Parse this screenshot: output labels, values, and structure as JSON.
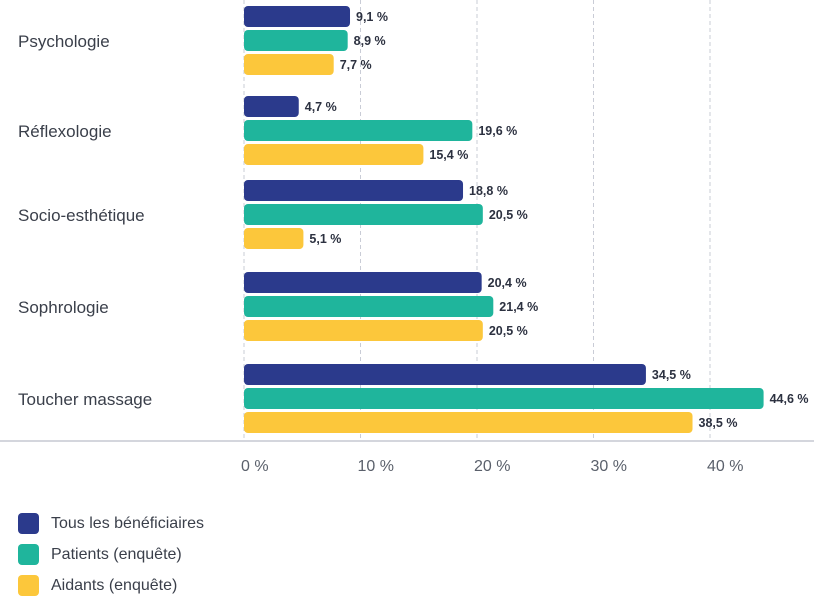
{
  "chart_data": {
    "type": "bar",
    "orientation": "horizontal",
    "categories": [
      "Psychologie",
      "Réflexologie",
      "Socio-esthétique",
      "Sophrologie",
      "Toucher massage"
    ],
    "series": [
      {
        "name": "Tous les bénéficiaires",
        "color": "#2b3a8c",
        "values": [
          9.1,
          4.7,
          18.8,
          20.4,
          34.5
        ],
        "labels": [
          "9,1 %",
          "4,7 %",
          "18,8 %",
          "20,4 %",
          "34,5 %"
        ]
      },
      {
        "name": "Patients (enquête)",
        "color": "#1fb59c",
        "values": [
          8.9,
          19.6,
          20.5,
          21.4,
          44.6
        ],
        "labels": [
          "8,9 %",
          "19,6 %",
          "20,5 %",
          "21,4 %",
          "44,6 %"
        ]
      },
      {
        "name": "Aidants (enquête)",
        "color": "#fcc73b",
        "values": [
          7.7,
          15.4,
          5.1,
          20.5,
          38.5
        ],
        "labels": [
          "7,7 %",
          "15,4 %",
          "5,1 %",
          "20,5 %",
          "38,5 %"
        ]
      }
    ],
    "xlim": [
      0,
      45
    ],
    "xticks": [
      0,
      10,
      20,
      30,
      40
    ],
    "xtick_labels": [
      "0 %",
      "10 %",
      "20 %",
      "30 %",
      "40 %"
    ],
    "grid": true,
    "legend_position": "bottom-left"
  },
  "legend": {
    "items": [
      {
        "label": "Tous les bénéficiaires",
        "color": "#2b3a8c"
      },
      {
        "label": "Patients (enquête)",
        "color": "#1fb59c"
      },
      {
        "label": "Aidants (enquête)",
        "color": "#fcc73b"
      }
    ]
  }
}
